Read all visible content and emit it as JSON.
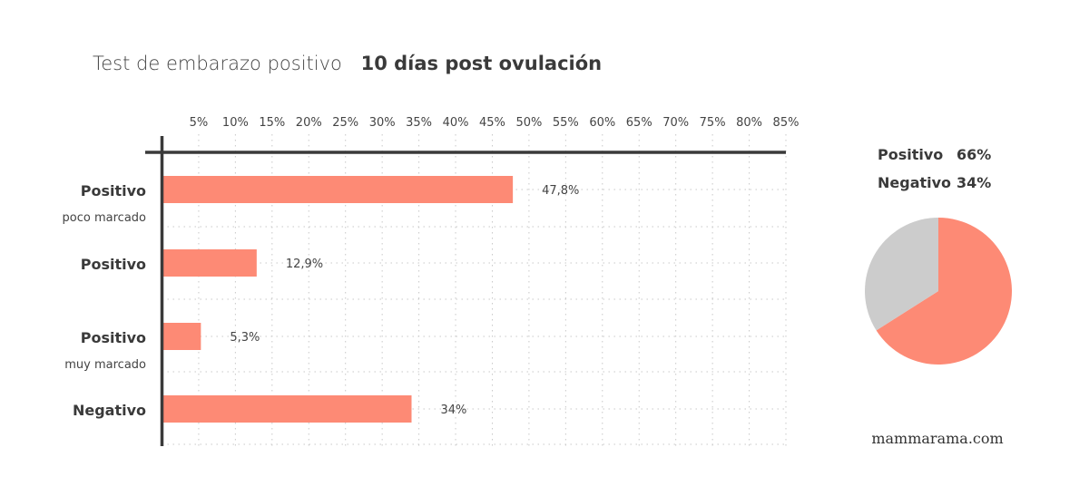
{
  "title": {
    "main": "Test de embarazo positivo",
    "highlight": "10 días post ovulación"
  },
  "colors": {
    "bar": "#fd8a75",
    "negative_slice": "#cccccc",
    "axis": "#3a3a3a",
    "grid": "#c8c8c8"
  },
  "chart_data": [
    {
      "type": "bar",
      "orientation": "horizontal",
      "categories": [
        {
          "label": "Positivo",
          "sublabel": "poco marcado"
        },
        {
          "label": "Positivo",
          "sublabel": ""
        },
        {
          "label": "Positivo",
          "sublabel": "muy marcado"
        },
        {
          "label": "Negativo",
          "sublabel": ""
        }
      ],
      "values": [
        47.8,
        12.9,
        5.3,
        34
      ],
      "value_labels": [
        "47,8%",
        "12,9%",
        "5,3%",
        "34%"
      ],
      "xlim": [
        0,
        85
      ],
      "xticks": [
        "5%",
        "10%",
        "15%",
        "20%",
        "25%",
        "30%",
        "35%",
        "40%",
        "45%",
        "50%",
        "55%",
        "60%",
        "65%",
        "70%",
        "75%",
        "80%",
        "85%"
      ],
      "xtick_values": [
        5,
        10,
        15,
        20,
        25,
        30,
        35,
        40,
        45,
        50,
        55,
        60,
        65,
        70,
        75,
        80,
        85
      ],
      "x_axis_position": "top",
      "grid": "dotted"
    },
    {
      "type": "pie",
      "slices": [
        {
          "name": "Positivo",
          "value": 66,
          "label": "66%",
          "color": "#fd8a75"
        },
        {
          "name": "Negativo",
          "value": 34,
          "label": "34%",
          "color": "#cccccc"
        }
      ],
      "legend_placement": "top"
    }
  ],
  "footer": {
    "brand": "mammarama.com"
  }
}
